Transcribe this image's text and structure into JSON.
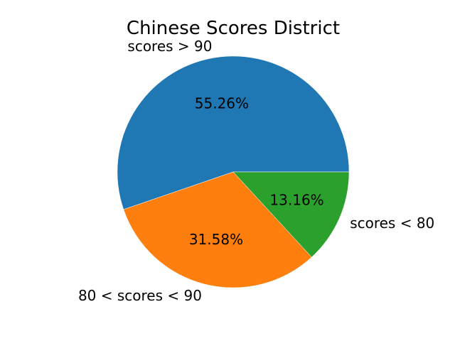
{
  "chart_data": {
    "type": "pie",
    "title": "Chinese Scores District",
    "categories": [
      "scores > 90",
      "80 < scores < 90",
      "scores < 80"
    ],
    "values": [
      55.26,
      31.58,
      13.16
    ],
    "value_labels": [
      "55.26%",
      "31.58%",
      "13.16%"
    ],
    "colors": [
      "#1f77b4",
      "#ff7f0e",
      "#2ca02c"
    ],
    "start_angle_deg": 0,
    "direction": "counterclockwise",
    "legend": "none"
  }
}
